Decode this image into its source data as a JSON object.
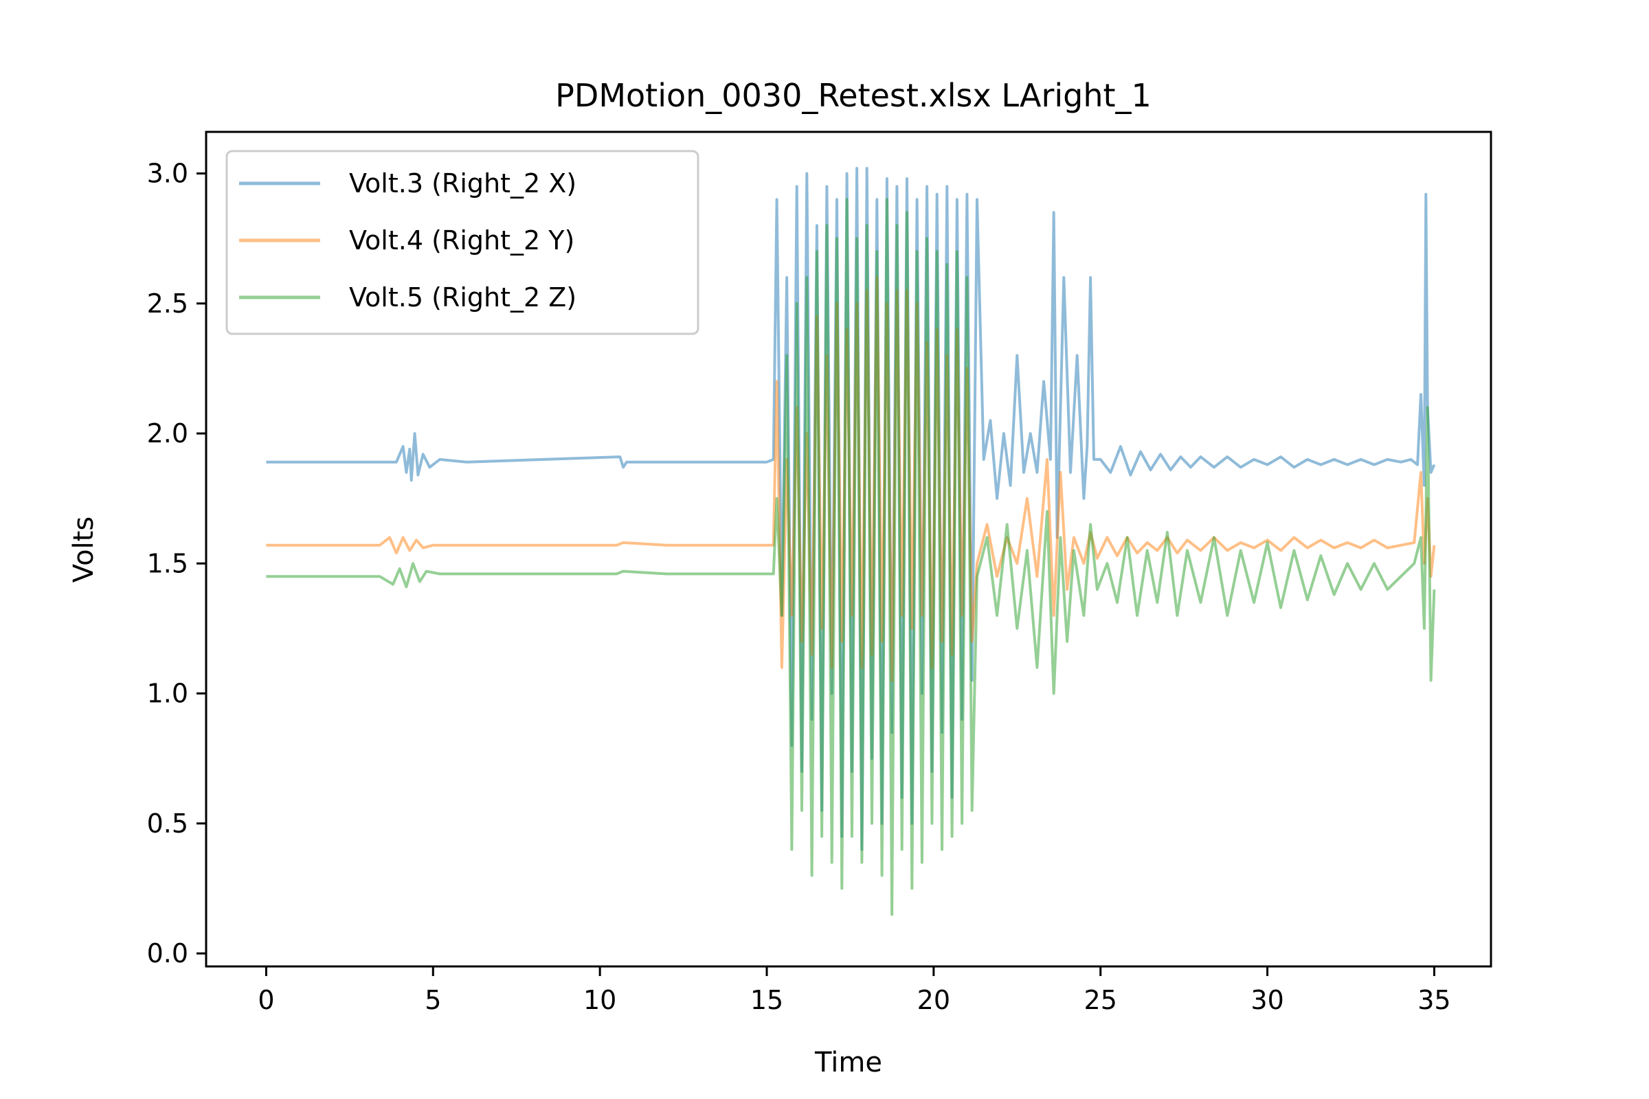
{
  "chart_data": {
    "type": "line",
    "title": "PDMotion_0030_Retest.xlsx LAright_1",
    "xlabel": "Time",
    "ylabel": "Volts",
    "xlim": [
      -1.8,
      36.7
    ],
    "ylim": [
      -0.05,
      3.16
    ],
    "xticks": [
      0,
      5,
      10,
      15,
      20,
      25,
      30,
      35
    ],
    "yticks": [
      0.0,
      0.5,
      1.0,
      1.5,
      2.0,
      2.5,
      3.0
    ],
    "xtick_labels": [
      "0",
      "5",
      "10",
      "15",
      "20",
      "25",
      "30",
      "35"
    ],
    "ytick_labels": [
      "0.0",
      "0.5",
      "1.0",
      "1.5",
      "2.0",
      "2.5",
      "3.0"
    ],
    "grid": false,
    "legend_position": "top-left",
    "series": [
      {
        "name": "Volt.3 (Right_2 X)",
        "color": "#1f77b4",
        "x": [
          0,
          3.0,
          3.9,
          4.1,
          4.2,
          4.3,
          4.35,
          4.45,
          4.55,
          4.7,
          4.9,
          5.2,
          6.0,
          10.6,
          10.7,
          10.8,
          12.0,
          15.0,
          15.2,
          15.3,
          15.45,
          15.6,
          15.75,
          15.9,
          16.05,
          16.2,
          16.35,
          16.5,
          16.65,
          16.8,
          16.95,
          17.1,
          17.25,
          17.4,
          17.55,
          17.7,
          17.85,
          18.0,
          18.15,
          18.3,
          18.45,
          18.6,
          18.75,
          18.9,
          19.05,
          19.2,
          19.35,
          19.5,
          19.65,
          19.8,
          19.95,
          20.1,
          20.25,
          20.4,
          20.55,
          20.7,
          20.85,
          21.0,
          21.15,
          21.3,
          21.5,
          21.7,
          21.9,
          22.1,
          22.3,
          22.5,
          22.7,
          22.9,
          23.1,
          23.3,
          23.5,
          23.6,
          23.7,
          23.9,
          24.1,
          24.3,
          24.5,
          24.6,
          24.7,
          24.8,
          25.0,
          25.3,
          25.6,
          25.9,
          26.2,
          26.5,
          26.8,
          27.1,
          27.4,
          27.7,
          28.0,
          28.4,
          28.8,
          29.2,
          29.6,
          30.0,
          30.4,
          30.8,
          31.2,
          31.6,
          32.0,
          32.4,
          32.8,
          33.2,
          33.6,
          34.0,
          34.3,
          34.5,
          34.6,
          34.7,
          34.75,
          34.8,
          34.9,
          35.0
        ],
        "y": [
          1.89,
          1.89,
          1.89,
          1.95,
          1.85,
          1.94,
          1.82,
          2.0,
          1.84,
          1.92,
          1.87,
          1.9,
          1.89,
          1.91,
          1.87,
          1.89,
          1.89,
          1.89,
          1.9,
          2.9,
          1.3,
          2.6,
          0.8,
          2.95,
          0.7,
          3.0,
          0.9,
          2.8,
          0.55,
          2.95,
          1.0,
          2.9,
          0.45,
          3.0,
          0.7,
          3.02,
          0.4,
          3.02,
          0.75,
          2.9,
          0.5,
          2.98,
          0.85,
          2.95,
          0.6,
          2.98,
          0.5,
          2.9,
          1.0,
          2.95,
          0.7,
          2.92,
          0.85,
          2.95,
          0.6,
          2.9,
          0.9,
          2.92,
          1.05,
          2.9,
          1.9,
          2.05,
          1.75,
          2.0,
          1.8,
          2.3,
          1.85,
          2.0,
          1.85,
          2.2,
          1.9,
          2.85,
          1.6,
          2.6,
          1.85,
          2.3,
          1.75,
          1.95,
          2.6,
          1.9,
          1.9,
          1.85,
          1.95,
          1.84,
          1.93,
          1.86,
          1.92,
          1.86,
          1.91,
          1.87,
          1.91,
          1.87,
          1.91,
          1.87,
          1.9,
          1.88,
          1.91,
          1.87,
          1.9,
          1.88,
          1.9,
          1.88,
          1.9,
          1.88,
          1.9,
          1.89,
          1.9,
          1.88,
          2.15,
          1.8,
          2.92,
          2.1,
          1.85,
          1.88
        ]
      },
      {
        "name": "Volt.4 (Right_2 Y)",
        "color": "#ff7f0e",
        "x": [
          0,
          3.4,
          3.7,
          3.9,
          4.1,
          4.3,
          4.5,
          4.7,
          5.0,
          6.0,
          10.5,
          10.7,
          12.0,
          15.0,
          15.2,
          15.3,
          15.45,
          15.6,
          15.75,
          15.9,
          16.05,
          16.2,
          16.35,
          16.5,
          16.65,
          16.8,
          16.95,
          17.1,
          17.25,
          17.4,
          17.55,
          17.7,
          17.85,
          18.0,
          18.15,
          18.3,
          18.45,
          18.6,
          18.75,
          18.9,
          19.05,
          19.2,
          19.35,
          19.5,
          19.65,
          19.8,
          19.95,
          20.1,
          20.25,
          20.4,
          20.55,
          20.7,
          20.85,
          21.0,
          21.15,
          21.3,
          21.6,
          21.9,
          22.2,
          22.5,
          22.8,
          23.1,
          23.4,
          23.6,
          23.8,
          24.0,
          24.2,
          24.5,
          24.7,
          24.9,
          25.2,
          25.5,
          25.8,
          26.1,
          26.4,
          26.7,
          27.0,
          27.3,
          27.6,
          28.0,
          28.4,
          28.8,
          29.2,
          29.6,
          30.0,
          30.4,
          30.8,
          31.2,
          31.6,
          32.0,
          32.4,
          32.8,
          33.2,
          33.6,
          34.0,
          34.4,
          34.6,
          34.7,
          34.8,
          34.9,
          35.0
        ],
        "y": [
          1.57,
          1.57,
          1.6,
          1.54,
          1.6,
          1.55,
          1.59,
          1.56,
          1.57,
          1.57,
          1.57,
          1.58,
          1.57,
          1.57,
          1.57,
          2.2,
          1.1,
          1.9,
          1.3,
          2.1,
          1.2,
          2.0,
          1.15,
          2.45,
          1.25,
          2.3,
          1.1,
          2.5,
          1.2,
          2.4,
          1.3,
          2.5,
          1.1,
          2.55,
          1.15,
          2.6,
          1.2,
          2.5,
          1.05,
          2.55,
          1.3,
          2.55,
          1.25,
          2.5,
          1.3,
          2.35,
          1.1,
          2.4,
          1.2,
          2.3,
          1.15,
          2.4,
          1.3,
          2.25,
          1.2,
          1.5,
          1.65,
          1.45,
          1.6,
          1.5,
          1.75,
          1.45,
          1.9,
          1.3,
          1.85,
          1.4,
          1.6,
          1.5,
          1.62,
          1.52,
          1.6,
          1.53,
          1.6,
          1.54,
          1.58,
          1.55,
          1.6,
          1.54,
          1.59,
          1.55,
          1.6,
          1.55,
          1.58,
          1.56,
          1.59,
          1.55,
          1.6,
          1.56,
          1.59,
          1.56,
          1.58,
          1.56,
          1.59,
          1.56,
          1.57,
          1.58,
          1.85,
          1.5,
          1.75,
          1.45,
          1.57
        ]
      },
      {
        "name": "Volt.5 (Right_2 Z)",
        "color": "#2ca02c",
        "x": [
          0,
          3.4,
          3.8,
          4.0,
          4.2,
          4.4,
          4.6,
          4.8,
          5.2,
          6.0,
          10.5,
          10.7,
          12.0,
          15.0,
          15.2,
          15.3,
          15.45,
          15.6,
          15.75,
          15.9,
          16.05,
          16.2,
          16.35,
          16.5,
          16.65,
          16.8,
          16.95,
          17.1,
          17.25,
          17.4,
          17.55,
          17.7,
          17.85,
          18.0,
          18.15,
          18.3,
          18.45,
          18.6,
          18.75,
          18.9,
          19.05,
          19.2,
          19.35,
          19.5,
          19.65,
          19.8,
          19.95,
          20.1,
          20.25,
          20.4,
          20.55,
          20.7,
          20.85,
          21.0,
          21.15,
          21.3,
          21.6,
          21.9,
          22.2,
          22.5,
          22.8,
          23.1,
          23.4,
          23.6,
          23.8,
          24.0,
          24.2,
          24.5,
          24.7,
          24.9,
          25.2,
          25.5,
          25.8,
          26.1,
          26.4,
          26.7,
          27.0,
          27.3,
          27.6,
          28.0,
          28.4,
          28.8,
          29.2,
          29.6,
          30.0,
          30.4,
          30.8,
          31.2,
          31.6,
          32.0,
          32.4,
          32.8,
          33.2,
          33.6,
          34.0,
          34.4,
          34.6,
          34.7,
          34.8,
          34.9,
          35.0
        ],
        "y": [
          1.45,
          1.45,
          1.42,
          1.48,
          1.41,
          1.5,
          1.43,
          1.47,
          1.46,
          1.46,
          1.46,
          1.47,
          1.46,
          1.46,
          1.46,
          1.75,
          1.3,
          2.3,
          0.4,
          2.5,
          0.55,
          2.6,
          0.3,
          2.7,
          0.45,
          2.8,
          0.35,
          2.75,
          0.25,
          2.9,
          0.45,
          2.75,
          0.35,
          2.8,
          0.5,
          2.7,
          0.3,
          2.9,
          0.15,
          2.8,
          0.4,
          2.85,
          0.25,
          2.7,
          0.35,
          2.75,
          0.5,
          2.7,
          0.4,
          2.65,
          0.45,
          2.7,
          0.5,
          2.6,
          0.55,
          1.45,
          1.6,
          1.3,
          1.65,
          1.25,
          1.55,
          1.1,
          1.7,
          1.0,
          1.6,
          1.2,
          1.55,
          1.3,
          1.65,
          1.4,
          1.5,
          1.35,
          1.6,
          1.3,
          1.55,
          1.35,
          1.62,
          1.3,
          1.55,
          1.35,
          1.6,
          1.3,
          1.55,
          1.35,
          1.58,
          1.33,
          1.55,
          1.36,
          1.53,
          1.38,
          1.5,
          1.4,
          1.5,
          1.4,
          1.45,
          1.5,
          1.6,
          1.25,
          2.1,
          1.05,
          1.4
        ]
      }
    ]
  }
}
